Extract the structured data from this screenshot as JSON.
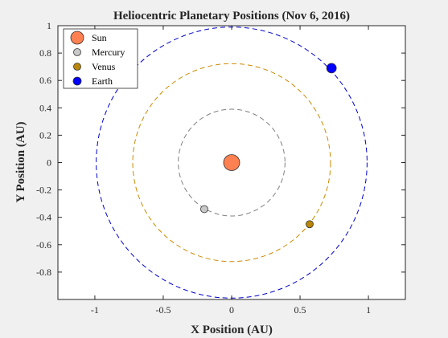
{
  "chart_data": {
    "type": "scatter",
    "title": "Heliocentric Planetary Positions (Nov 6, 2016)",
    "xlabel": "X Position (AU)",
    "ylabel": "Y Position (AU)",
    "xlim": [
      -1.27,
      1.27
    ],
    "ylim": [
      -1.0,
      1.0
    ],
    "xticks": [
      -1,
      -0.5,
      0,
      0.5,
      1
    ],
    "xtick_labels": [
      "-1",
      "-0.5",
      "0",
      "0.5",
      "1"
    ],
    "yticks": [
      1,
      0.8,
      0.6,
      0.4,
      0.2,
      0,
      -0.2,
      -0.4,
      -0.6,
      -0.8
    ],
    "ytick_labels": [
      "1",
      "0.8",
      "0.6",
      "0.4",
      "0.2",
      "0",
      "-0.2",
      "-0.4",
      "-0.6",
      "-0.8"
    ],
    "grid": false,
    "legend_position": "top-left",
    "orbits": [
      {
        "name": "Mercury",
        "radius": 0.39,
        "color": "#808080"
      },
      {
        "name": "Venus",
        "radius": 0.723,
        "color": "#cc8a00"
      },
      {
        "name": "Earth",
        "radius": 0.99,
        "color": "#0000cc"
      }
    ],
    "series": [
      {
        "name": "Sun",
        "x": 0,
        "y": 0,
        "color": "#ff8050",
        "marker_size": "large"
      },
      {
        "name": "Mercury",
        "x": -0.2,
        "y": -0.34,
        "color": "#c8c8c8",
        "marker_size": "small"
      },
      {
        "name": "Venus",
        "x": 0.57,
        "y": -0.45,
        "color": "#b8860b",
        "marker_size": "small"
      },
      {
        "name": "Earth",
        "x": 0.73,
        "y": 0.69,
        "color": "#0000ff",
        "marker_size": "medium"
      }
    ]
  }
}
